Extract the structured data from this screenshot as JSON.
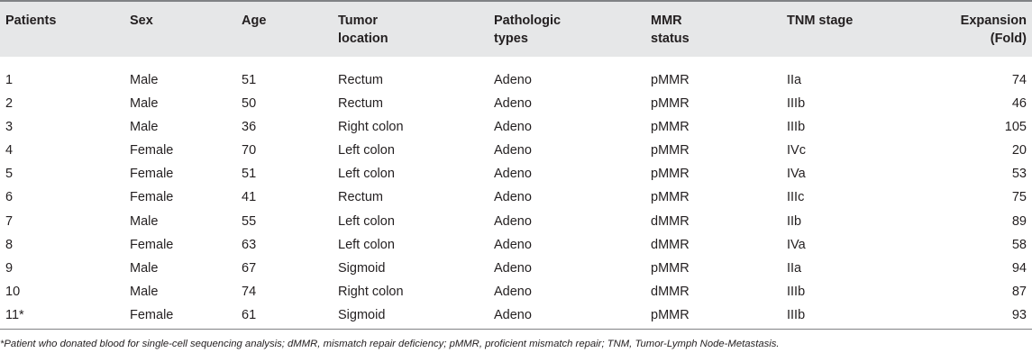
{
  "columns": [
    "Patients",
    "Sex",
    "Age",
    "Tumor\nlocation",
    "Pathologic\ntypes",
    "MMR\nstatus",
    "TNM stage",
    "Expansion\n(Fold)"
  ],
  "rows": [
    [
      "1",
      "Male",
      "51",
      "Rectum",
      "Adeno",
      "pMMR",
      "IIa",
      "74"
    ],
    [
      "2",
      "Male",
      "50",
      "Rectum",
      "Adeno",
      "pMMR",
      "IIIb",
      "46"
    ],
    [
      "3",
      "Male",
      "36",
      "Right colon",
      "Adeno",
      "pMMR",
      "IIIb",
      "105"
    ],
    [
      "4",
      "Female",
      "70",
      "Left colon",
      "Adeno",
      "pMMR",
      "IVc",
      "20"
    ],
    [
      "5",
      "Female",
      "51",
      "Left colon",
      "Adeno",
      "pMMR",
      "IVa",
      "53"
    ],
    [
      "6",
      "Female",
      "41",
      "Rectum",
      "Adeno",
      "pMMR",
      "IIIc",
      "75"
    ],
    [
      "7",
      "Male",
      "55",
      "Left colon",
      "Adeno",
      "dMMR",
      "IIb",
      "89"
    ],
    [
      "8",
      "Female",
      "63",
      "Left colon",
      "Adeno",
      "dMMR",
      "IVa",
      "58"
    ],
    [
      "9",
      "Male",
      "67",
      "Sigmoid",
      "Adeno",
      "pMMR",
      "IIa",
      "94"
    ],
    [
      "10",
      "Male",
      "74",
      "Right colon",
      "Adeno",
      "dMMR",
      "IIIb",
      "87"
    ],
    [
      "11*",
      "Female",
      "61",
      "Sigmoid",
      "Adeno",
      "pMMR",
      "IIIb",
      "93"
    ]
  ],
  "footnote": "*Patient who donated blood for single-cell sequencing analysis; dMMR, mismatch repair deficiency; pMMR, proficient mismatch repair; TNM, Tumor-Lymph Node-Metastasis."
}
